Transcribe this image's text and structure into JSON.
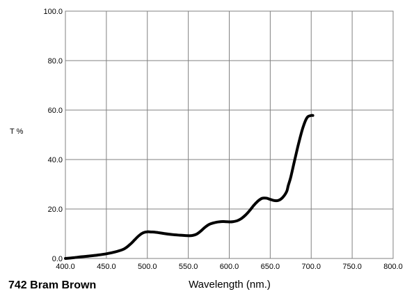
{
  "chart_data": {
    "type": "line",
    "title": "742 Bram Brown",
    "xlabel": "Wavelength (nm.)",
    "ylabel": "T %",
    "xlim": [
      400,
      800
    ],
    "ylim": [
      0,
      100
    ],
    "x_ticks": [
      "400.0",
      "450.0",
      "500.0",
      "550.0",
      "600.0",
      "650.0",
      "700.0",
      "750.0",
      "800.0"
    ],
    "y_ticks": [
      "0.0",
      "20.0",
      "40.0",
      "60.0",
      "80.0",
      "100.0"
    ],
    "x_tick_values": [
      400,
      450,
      500,
      550,
      600,
      650,
      700,
      750,
      800
    ],
    "y_tick_values": [
      0,
      20,
      40,
      60,
      80,
      100
    ],
    "grid": true,
    "line_color": "#000000",
    "series": [
      {
        "x": [
          400,
          410,
          420,
          430,
          440,
          450,
          460,
          470,
          475,
          480,
          485,
          490,
          495,
          500,
          505,
          510,
          520,
          530,
          540,
          550,
          555,
          560,
          565,
          570,
          575,
          580,
          585,
          590,
          595,
          600,
          605,
          610,
          615,
          620,
          625,
          630,
          635,
          640,
          645,
          650,
          655,
          660,
          665,
          670,
          672,
          675,
          680,
          685,
          690,
          695,
          700,
          702
        ],
        "y": [
          0.0,
          0.3,
          0.7,
          1.0,
          1.4,
          1.9,
          2.6,
          3.6,
          4.6,
          6.0,
          7.7,
          9.3,
          10.4,
          10.8,
          10.7,
          10.6,
          10.1,
          9.7,
          9.4,
          9.2,
          9.3,
          9.8,
          11.0,
          12.5,
          13.7,
          14.3,
          14.7,
          14.9,
          14.9,
          14.8,
          14.9,
          15.3,
          16.2,
          17.6,
          19.4,
          21.5,
          23.2,
          24.3,
          24.4,
          23.9,
          23.4,
          23.5,
          24.6,
          27.0,
          29.5,
          32.8,
          40.0,
          47.0,
          53.0,
          57.0,
          57.8,
          57.8
        ]
      }
    ]
  }
}
